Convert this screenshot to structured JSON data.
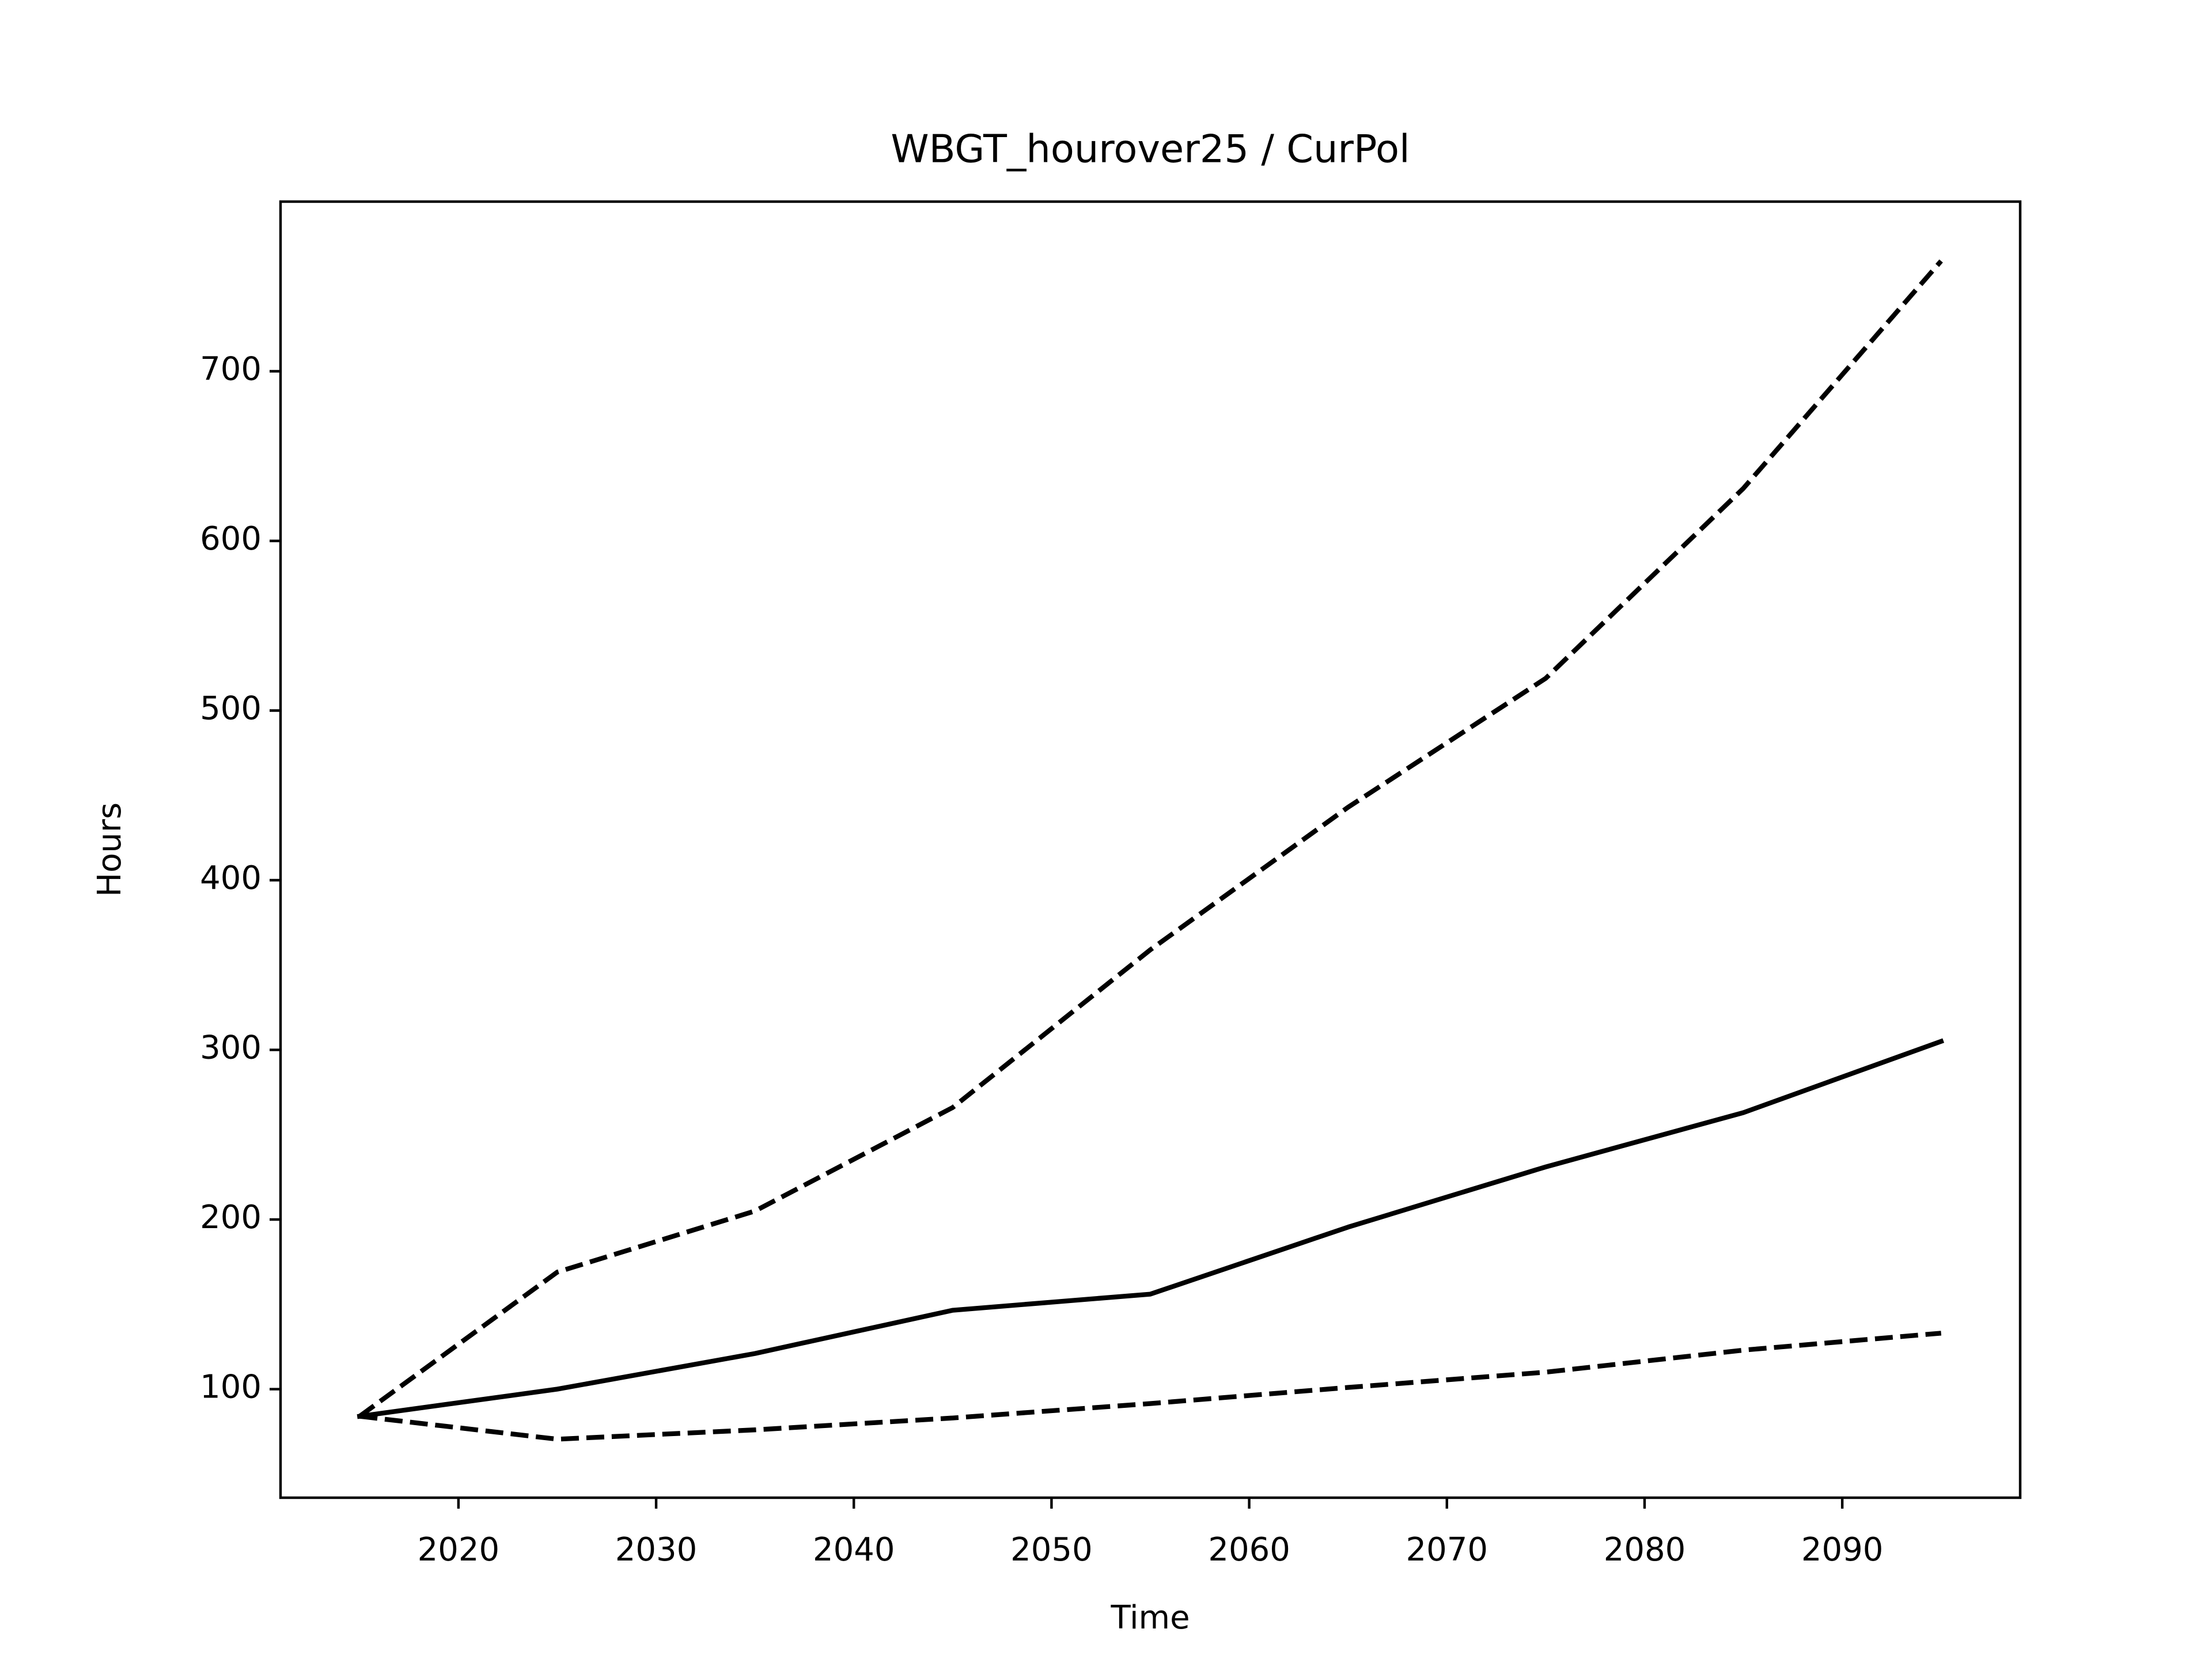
{
  "chart_data": {
    "type": "line",
    "title": "WBGT_hourover25 / CurPol",
    "x_label": "Time",
    "y_label": "Hours",
    "x": [
      2015,
      2025,
      2035,
      2045,
      2055,
      2065,
      2075,
      2085,
      2095
    ],
    "series": [
      {
        "color": "#000000",
        "linestyle": "solid",
        "values": [
          84,
          100,
          121,
          146.5,
          156,
          195.5,
          231,
          263,
          305
        ]
      },
      {
        "color": "#000000",
        "linestyle": "dashed",
        "values": [
          84,
          169,
          205,
          266,
          359,
          443,
          519,
          631,
          765
        ]
      },
      {
        "color": "#000000",
        "linestyle": "dashed",
        "values": [
          84,
          70.5,
          76,
          83,
          91.5,
          101,
          110,
          123,
          133
        ]
      }
    ],
    "xlim": [
      2011,
      2099
    ],
    "xticks": [
      2020,
      2030,
      2040,
      2050,
      2060,
      2070,
      2080,
      2090
    ],
    "ylim": [
      36,
      800
    ],
    "yticks": [
      100,
      200,
      300,
      400,
      500,
      600,
      700
    ],
    "grid": false
  }
}
